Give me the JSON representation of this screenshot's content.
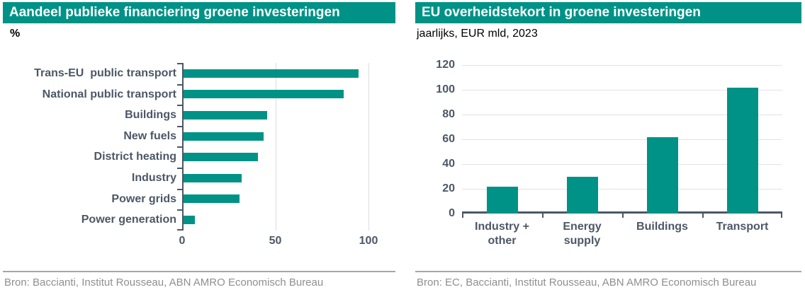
{
  "colors": {
    "teal": "#009286",
    "text_dark": "#4d5766",
    "gridline": "#e3e3e3",
    "divider_gray": "#a6a6a6",
    "source_gray": "#8f8f8f",
    "title_text": "#ffffff"
  },
  "left_panel": {
    "title": "Aandeel publieke financiering groene investeringen",
    "subtitle": "%",
    "source": "Bron: Baccianti, Institut Rousseau, ABN AMRO Economisch Bureau"
  },
  "right_panel": {
    "title": "EU overheidstekort in groene investeringen",
    "subtitle": "jaarlijks, EUR mld, 2023",
    "source": "Bron: EC, Baccianti, Institut Rousseau, ABN AMRO Economisch Bureau"
  },
  "chart_data": [
    {
      "type": "bar",
      "orientation": "horizontal",
      "title": "Aandeel publieke financiering groene investeringen",
      "unit": "%",
      "categories": [
        "Trans-EU  public transport",
        "National public transport",
        "Buildings",
        "New fuels",
        "District heating",
        "Industry",
        "Power grids",
        "Power generation"
      ],
      "values": [
        94,
        86,
        45,
        43,
        40,
        31,
        30,
        6
      ],
      "xlim": [
        0,
        108
      ],
      "xticks": [
        0,
        50,
        100
      ],
      "grid": "vertical gridlines at 50 and 100",
      "legend": "none",
      "bar_color": "#009286"
    },
    {
      "type": "bar",
      "orientation": "vertical",
      "title": "EU overheidstekort in groene investeringen",
      "unit": "EUR mld per jaar, 2023",
      "categories": [
        "Industry + other",
        "Energy supply",
        "Buildings",
        "Transport"
      ],
      "category_lines": [
        [
          "Industry +",
          "other"
        ],
        [
          "Energy",
          "supply"
        ],
        [
          "Buildings"
        ],
        [
          "Transport"
        ]
      ],
      "values": [
        22,
        30,
        62,
        102
      ],
      "ylim": [
        0,
        120
      ],
      "yticks": [
        0,
        20,
        40,
        60,
        80,
        100,
        120
      ],
      "grid": "horizontal gridlines every 20",
      "legend": "none",
      "bar_color": "#009286"
    }
  ]
}
